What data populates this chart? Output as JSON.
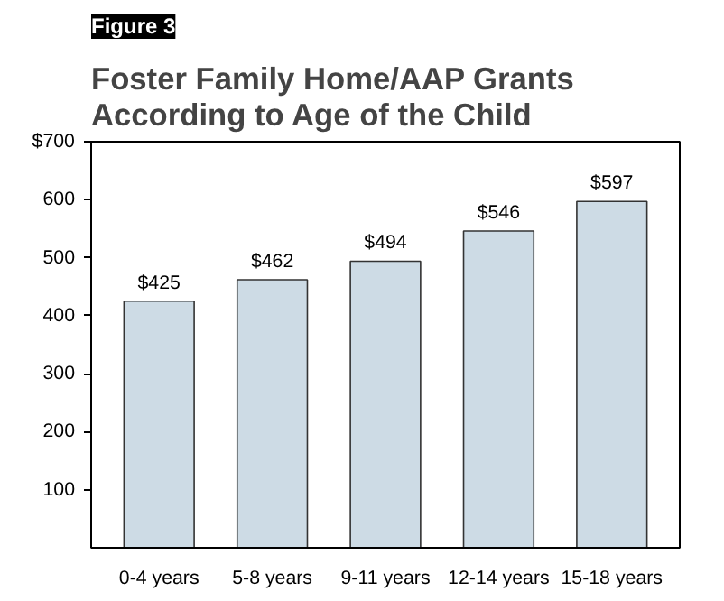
{
  "chart_data": {
    "type": "bar",
    "title": "Foster Family Home/AAP Grants\nAccording to Age of the Child",
    "annotations": [
      "Figure 3"
    ],
    "categories": [
      "0-4 years",
      "5-8 years",
      "9-11 years",
      "12-14 years",
      "15-18 years"
    ],
    "values": [
      425,
      462,
      494,
      546,
      597
    ],
    "value_labels": [
      "$425",
      "$462",
      "$494",
      "$546",
      "$597"
    ],
    "color": "#cddbe5",
    "ylim": [
      0,
      700
    ],
    "yticks": [
      100,
      200,
      300,
      400,
      500,
      600,
      {
        "value": 700,
        "label": "$700"
      }
    ],
    "grid": false
  }
}
